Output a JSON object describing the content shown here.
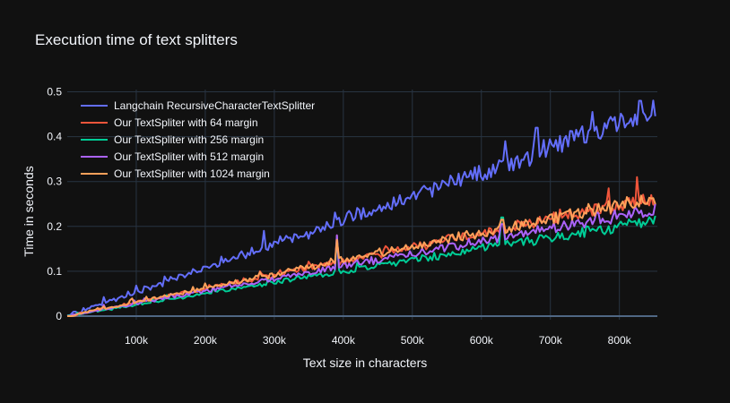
{
  "chart_data": {
    "type": "line",
    "title": "Execution time of text splitters",
    "xlabel": "Text size in characters",
    "ylabel": "Time in seconds",
    "xlim": [
      0,
      855000
    ],
    "ylim": [
      -0.008,
      0.505
    ],
    "x_ticks": [
      100000,
      200000,
      300000,
      400000,
      500000,
      600000,
      700000,
      800000
    ],
    "x_tick_labels": [
      "100k",
      "200k",
      "300k",
      "400k",
      "500k",
      "600k",
      "700k",
      "800k"
    ],
    "y_ticks": [
      0,
      0.1,
      0.2,
      0.3,
      0.4,
      0.5
    ],
    "y_tick_labels": [
      "0",
      "0.1",
      "0.2",
      "0.3",
      "0.4",
      "0.5"
    ],
    "grid": true,
    "legend_position": "top-left",
    "background": "#111111",
    "series": [
      {
        "name": "Langchain RecursiveCharacterTextSplitter",
        "color": "#636efa",
        "slope": 5.35e-07,
        "noise": 0.008,
        "spikes": [
          [
            100000,
            0.068
          ],
          [
            285000,
            0.19
          ],
          [
            635000,
            0.39
          ],
          [
            680000,
            0.42
          ],
          [
            760000,
            0.455
          ],
          [
            830000,
            0.48
          ]
        ]
      },
      {
        "name": "Our TextSpliter with 64 margin",
        "color": "#ef553b",
        "slope": 3.08e-07,
        "noise": 0.005,
        "spikes": [
          [
            280000,
            0.1
          ],
          [
            390000,
            0.18
          ],
          [
            630000,
            0.215
          ],
          [
            785000,
            0.285
          ],
          [
            825000,
            0.31
          ]
        ]
      },
      {
        "name": "Our TextSpliter with 256 margin",
        "color": "#00cc96",
        "slope": 2.5e-07,
        "noise": 0.004,
        "spikes": [
          [
            390000,
            0.175
          ],
          [
            630000,
            0.22
          ]
        ]
      },
      {
        "name": "Our TextSpliter with 512 margin",
        "color": "#ab63fa",
        "slope": 2.79e-07,
        "noise": 0.004,
        "spikes": [
          [
            390000,
            0.18
          ],
          [
            630000,
            0.205
          ]
        ]
      },
      {
        "name": "Our TextSpliter with 1024 margin",
        "color": "#ffa15a",
        "slope": 3.1e-07,
        "noise": 0.005,
        "spikes": [
          [
            280000,
            0.098
          ],
          [
            390000,
            0.17
          ],
          [
            630000,
            0.215
          ]
        ]
      }
    ],
    "x_start": 0,
    "x_end": 852000,
    "n_points": 290
  }
}
